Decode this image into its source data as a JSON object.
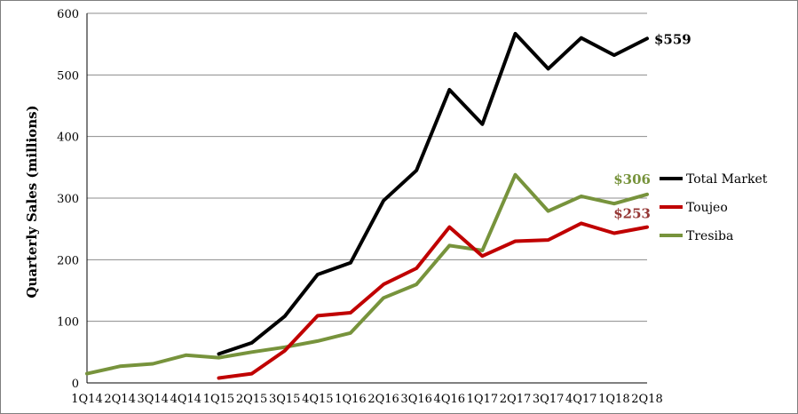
{
  "chart_data": {
    "type": "line",
    "ylabel": "Quarterly Sales (millions)",
    "xlabel": "",
    "ylim": [
      0,
      600
    ],
    "yticks": [
      0,
      100,
      200,
      300,
      400,
      500,
      600
    ],
    "grid": true,
    "legend_position": "right",
    "categories": [
      "1Q14",
      "2Q14",
      "3Q14",
      "4Q14",
      "1Q15",
      "2Q15",
      "3Q15",
      "4Q15",
      "1Q16",
      "2Q16",
      "3Q16",
      "4Q16",
      "1Q17",
      "2Q17",
      "3Q17",
      "4Q17",
      "1Q18",
      "2Q18"
    ],
    "series": [
      {
        "name": "Total Market",
        "color": "#000000",
        "values": [
          null,
          null,
          null,
          null,
          47,
          65,
          108,
          176,
          195,
          296,
          345,
          476,
          420,
          567,
          510,
          560,
          532,
          559
        ],
        "end_label": "$559"
      },
      {
        "name": "Toujeo",
        "color": "#c00000",
        "values": [
          null,
          null,
          null,
          null,
          8,
          15,
          52,
          109,
          114,
          160,
          186,
          253,
          206,
          230,
          232,
          259,
          243,
          253
        ],
        "end_label": "$253"
      },
      {
        "name": "Tresiba",
        "color": "#77933c",
        "values": [
          15,
          27,
          31,
          45,
          41,
          50,
          58,
          68,
          81,
          138,
          160,
          223,
          215,
          338,
          279,
          303,
          291,
          306
        ],
        "end_label": "$306"
      }
    ]
  },
  "colors": {
    "grid": "#8c8c8c",
    "axis": "#000000",
    "toujeo_label": "#953735",
    "tresiba_label": "#77933c"
  }
}
